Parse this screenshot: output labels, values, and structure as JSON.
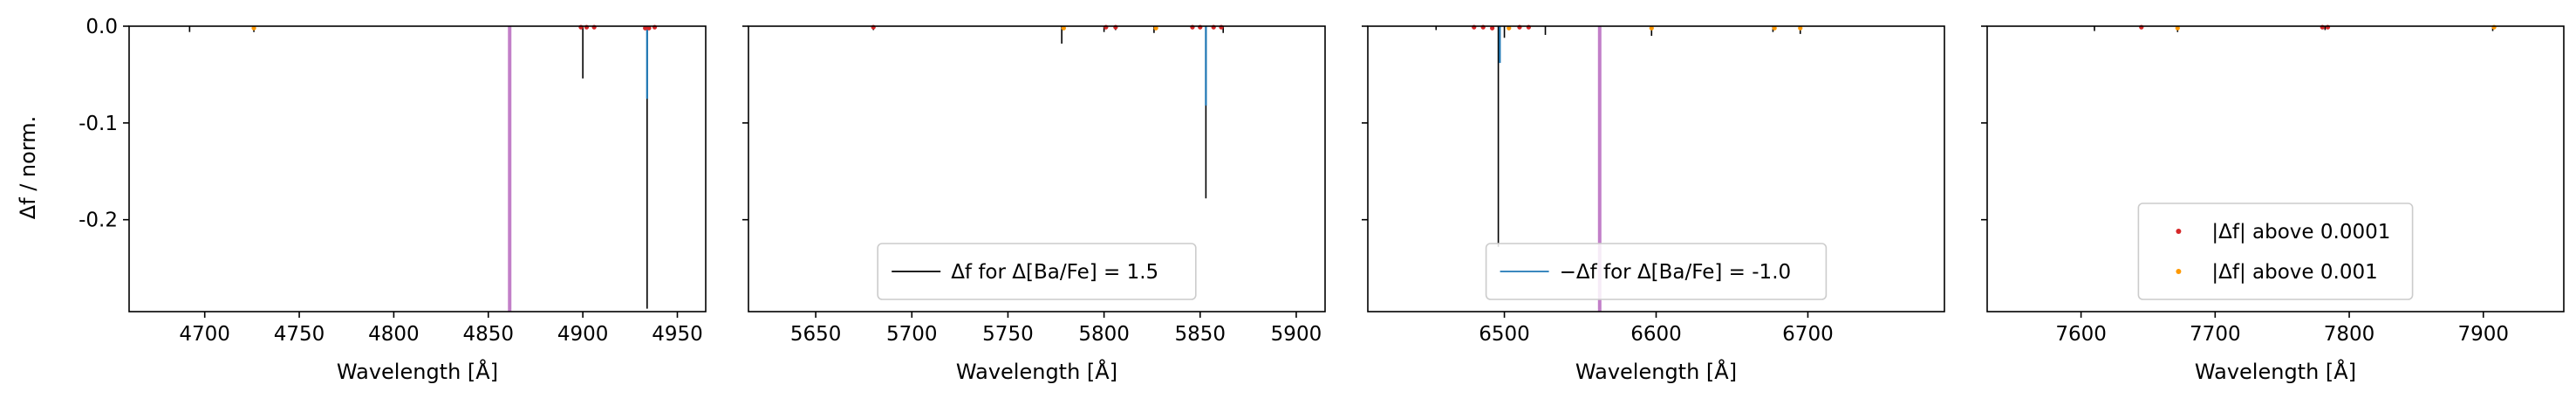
{
  "figure": {
    "ylabel": "Δf / norm.",
    "xlabel": "Wavelength [Å]",
    "ytick_labels": [
      "0.0",
      "-0.1",
      "-0.2"
    ]
  },
  "colors": {
    "black_series": "#000000",
    "blue_series": "#1f77b4",
    "red_points": "#d62728",
    "orange_points": "#ff9900",
    "vline": "#c27fc8"
  },
  "chart_data": [
    {
      "type": "line",
      "xlabel": "Wavelength [Å]",
      "ylabel": "Δf / norm.",
      "xlim": [
        4660,
        4965
      ],
      "ylim": [
        -0.295,
        0.0
      ],
      "xticks": [
        4700,
        4750,
        4800,
        4850,
        4900,
        4950
      ],
      "yticks": [
        0.0,
        -0.1,
        -0.2
      ],
      "vline": 4861.3,
      "legend": null,
      "lines": [
        {
          "x": 4692,
          "ymin": -0.006,
          "series": "black"
        },
        {
          "x": 4726,
          "ymin": -0.006,
          "series": "black"
        },
        {
          "x": 4900,
          "ymin": -0.054,
          "series": "black"
        },
        {
          "x": 4934,
          "ymin": -0.292,
          "series": "black"
        },
        {
          "x": 4934,
          "ymin": -0.075,
          "series": "blue"
        }
      ],
      "points": [
        {
          "x": 4726,
          "y": -0.002,
          "class": "orange"
        },
        {
          "x": 4899,
          "y": -0.001,
          "class": "red"
        },
        {
          "x": 4902,
          "y": -0.001,
          "class": "red"
        },
        {
          "x": 4906,
          "y": -0.001,
          "class": "red"
        },
        {
          "x": 4933,
          "y": -0.002,
          "class": "red"
        },
        {
          "x": 4935,
          "y": -0.002,
          "class": "red"
        },
        {
          "x": 4938,
          "y": -0.001,
          "class": "red"
        }
      ]
    },
    {
      "type": "line",
      "xlabel": "Wavelength [Å]",
      "ylabel": "",
      "xlim": [
        5615,
        5915
      ],
      "ylim": [
        -0.295,
        0.0
      ],
      "xticks": [
        5650,
        5700,
        5750,
        5800,
        5850,
        5900
      ],
      "yticks": [
        0.0,
        -0.1,
        -0.2
      ],
      "vline": null,
      "legend": {
        "position": "lower center",
        "entries": [
          {
            "label": "Δf for Δ[Ba/Fe] = 1.5",
            "series": "black"
          }
        ]
      },
      "lines": [
        {
          "x": 5680,
          "ymin": -0.004,
          "series": "black"
        },
        {
          "x": 5778,
          "ymin": -0.018,
          "series": "black"
        },
        {
          "x": 5800,
          "ymin": -0.006,
          "series": "black"
        },
        {
          "x": 5806,
          "ymin": -0.004,
          "series": "black"
        },
        {
          "x": 5826,
          "ymin": -0.007,
          "series": "black"
        },
        {
          "x": 5853,
          "ymin": -0.178,
          "series": "black"
        },
        {
          "x": 5853,
          "ymin": -0.082,
          "series": "blue"
        },
        {
          "x": 5862,
          "ymin": -0.007,
          "series": "black"
        }
      ],
      "points": [
        {
          "x": 5680,
          "y": -0.001,
          "class": "red"
        },
        {
          "x": 5779,
          "y": -0.002,
          "class": "orange"
        },
        {
          "x": 5801,
          "y": -0.001,
          "class": "red"
        },
        {
          "x": 5806,
          "y": -0.001,
          "class": "red"
        },
        {
          "x": 5827,
          "y": -0.002,
          "class": "orange"
        },
        {
          "x": 5846,
          "y": -0.001,
          "class": "red"
        },
        {
          "x": 5850,
          "y": -0.001,
          "class": "red"
        },
        {
          "x": 5857,
          "y": -0.001,
          "class": "red"
        },
        {
          "x": 5861,
          "y": -0.001,
          "class": "red"
        }
      ]
    },
    {
      "type": "line",
      "xlabel": "Wavelength [Å]",
      "ylabel": "",
      "xlim": [
        6410,
        6790
      ],
      "ylim": [
        -0.295,
        0.0
      ],
      "xticks": [
        6500,
        6600,
        6700
      ],
      "yticks": [
        0.0,
        -0.1,
        -0.2
      ],
      "vline": 6562.8,
      "legend": {
        "position": "lower center",
        "entries": [
          {
            "label": "−Δf for Δ[Ba/Fe] = -1.0",
            "series": "blue"
          }
        ]
      },
      "lines": [
        {
          "x": 6455,
          "ymin": -0.004,
          "series": "black"
        },
        {
          "x": 6496,
          "ymin": -0.228,
          "series": "black"
        },
        {
          "x": 6497,
          "ymin": -0.038,
          "series": "blue"
        },
        {
          "x": 6500,
          "ymin": -0.012,
          "series": "black"
        },
        {
          "x": 6527,
          "ymin": -0.009,
          "series": "black"
        },
        {
          "x": 6597,
          "ymin": -0.01,
          "series": "black"
        },
        {
          "x": 6677,
          "ymin": -0.006,
          "series": "black"
        },
        {
          "x": 6695,
          "ymin": -0.008,
          "series": "black"
        }
      ],
      "points": [
        {
          "x": 6480,
          "y": -0.001,
          "class": "red"
        },
        {
          "x": 6486,
          "y": -0.001,
          "class": "red"
        },
        {
          "x": 6492,
          "y": -0.002,
          "class": "red"
        },
        {
          "x": 6503,
          "y": -0.002,
          "class": "orange"
        },
        {
          "x": 6510,
          "y": -0.001,
          "class": "red"
        },
        {
          "x": 6516,
          "y": -0.001,
          "class": "red"
        },
        {
          "x": 6597,
          "y": -0.002,
          "class": "orange"
        },
        {
          "x": 6678,
          "y": -0.002,
          "class": "orange"
        },
        {
          "x": 6695,
          "y": -0.002,
          "class": "orange"
        }
      ]
    },
    {
      "type": "line",
      "xlabel": "Wavelength [Å]",
      "ylabel": "",
      "xlim": [
        7530,
        7960
      ],
      "ylim": [
        -0.295,
        0.0
      ],
      "xticks": [
        7600,
        7700,
        7800,
        7900
      ],
      "yticks": [
        0.0,
        -0.1,
        -0.2
      ],
      "vline": null,
      "legend": {
        "position": "lower center",
        "entries": [
          {
            "label": "|Δf| above 0.0001",
            "series": "red"
          },
          {
            "label": "|Δf| above 0.001",
            "series": "orange"
          }
        ]
      },
      "lines": [
        {
          "x": 7610,
          "ymin": -0.005,
          "series": "black"
        },
        {
          "x": 7672,
          "ymin": -0.006,
          "series": "black"
        },
        {
          "x": 7782,
          "ymin": -0.004,
          "series": "black"
        },
        {
          "x": 7907,
          "ymin": -0.005,
          "series": "black"
        }
      ],
      "points": [
        {
          "x": 7645,
          "y": -0.001,
          "class": "red"
        },
        {
          "x": 7672,
          "y": -0.002,
          "class": "orange"
        },
        {
          "x": 7780,
          "y": -0.001,
          "class": "red"
        },
        {
          "x": 7784,
          "y": -0.001,
          "class": "red"
        },
        {
          "x": 7908,
          "y": -0.001,
          "class": "orange"
        }
      ]
    }
  ]
}
